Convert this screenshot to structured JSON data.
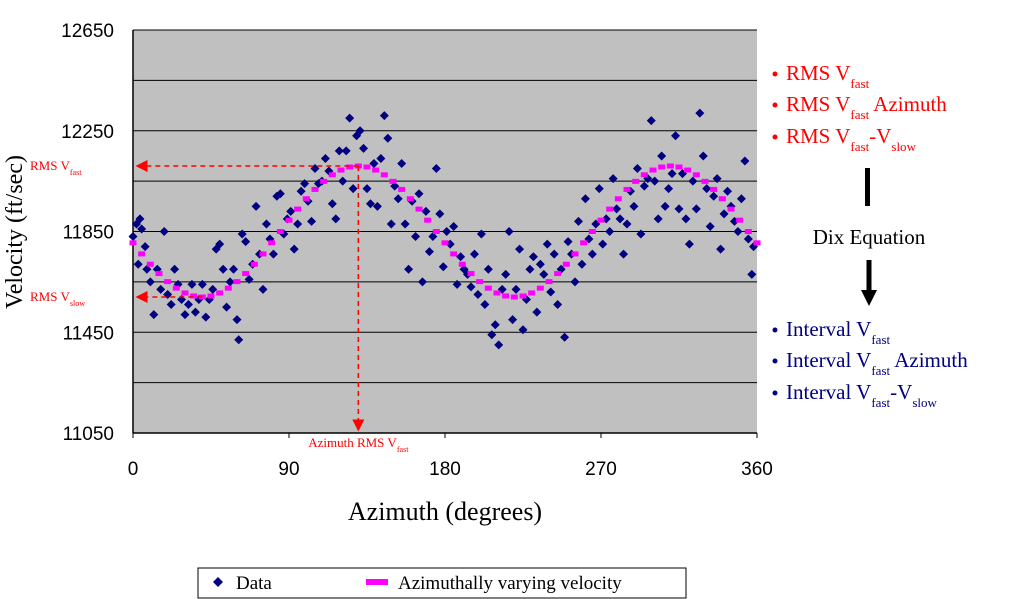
{
  "chart_data": {
    "type": "scatter",
    "xlabel": "Azimuth (degrees)",
    "ylabel": "Velocity (ft/sec)",
    "xlim": [
      0,
      360
    ],
    "ylim": [
      11050,
      12650
    ],
    "xticks": [
      0,
      90,
      180,
      270,
      360
    ],
    "yticks": [
      11050,
      11450,
      11850,
      12250,
      12650
    ],
    "minor_yticks": [
      11250,
      11650,
      12050,
      12450
    ],
    "grid": true,
    "background": "#c0c0c0",
    "legend": "bottom",
    "series": [
      {
        "name": "Data",
        "color": "#000080",
        "marker": "diamond",
        "x": [
          0,
          2,
          3,
          4,
          5,
          7,
          8,
          10,
          12,
          14,
          16,
          18,
          20,
          22,
          24,
          26,
          28,
          30,
          32,
          34,
          36,
          38,
          40,
          42,
          44,
          46,
          48,
          50,
          52,
          54,
          56,
          58,
          60,
          61,
          63,
          65,
          67,
          69,
          71,
          73,
          75,
          77,
          79,
          81,
          83,
          85,
          87,
          89,
          91,
          93,
          95,
          97,
          99,
          101,
          103,
          105,
          107,
          109,
          111,
          113,
          115,
          117,
          119,
          121,
          123,
          125,
          127,
          129,
          131,
          133,
          135,
          137,
          139,
          141,
          143,
          145,
          147,
          149,
          151,
          153,
          155,
          157,
          159,
          161,
          163,
          165,
          167,
          169,
          171,
          173,
          175,
          177,
          179,
          181,
          183,
          185,
          187,
          189,
          191,
          193,
          195,
          197,
          199,
          201,
          203,
          205,
          207,
          209,
          211,
          213,
          215,
          217,
          219,
          221,
          223,
          225,
          227,
          229,
          231,
          233,
          235,
          237,
          239,
          241,
          243,
          245,
          247,
          249,
          251,
          253,
          255,
          257,
          259,
          261,
          263,
          265,
          267,
          269,
          271,
          273,
          275,
          277,
          279,
          281,
          283,
          285,
          287,
          289,
          291,
          293,
          295,
          297,
          299,
          301,
          303,
          305,
          307,
          309,
          311,
          313,
          315,
          317,
          319,
          321,
          323,
          325,
          327,
          329,
          331,
          333,
          335,
          337,
          339,
          341,
          343,
          345,
          347,
          349,
          351,
          353,
          355,
          357,
          358
        ],
        "values": [
          11830,
          11880,
          11720,
          11900,
          11860,
          11790,
          11700,
          11650,
          11520,
          11700,
          11620,
          11850,
          11600,
          11560,
          11700,
          11640,
          11580,
          11520,
          11560,
          11640,
          11530,
          11580,
          11640,
          11510,
          11580,
          11620,
          11780,
          11800,
          11700,
          11550,
          11650,
          11700,
          11500,
          11420,
          11840,
          11810,
          11660,
          11720,
          11950,
          11760,
          11620,
          11880,
          11820,
          11760,
          11990,
          12000,
          11840,
          11900,
          11930,
          11780,
          11880,
          12010,
          12040,
          11970,
          11890,
          12100,
          12040,
          12050,
          12140,
          12090,
          11960,
          11900,
          12170,
          12050,
          12170,
          12300,
          12020,
          12230,
          12250,
          12180,
          12020,
          11960,
          12120,
          11950,
          12140,
          12310,
          12220,
          11880,
          12030,
          11980,
          12120,
          11880,
          11700,
          11970,
          11830,
          12000,
          11650,
          11930,
          11770,
          11830,
          12100,
          11920,
          11710,
          11850,
          11800,
          11870,
          11640,
          11750,
          11700,
          11680,
          11630,
          11760,
          11600,
          11840,
          11560,
          11700,
          11440,
          11480,
          11400,
          11620,
          11680,
          11850,
          11500,
          11620,
          11780,
          11460,
          11580,
          11700,
          11750,
          11530,
          11720,
          11680,
          11800,
          11610,
          11760,
          11560,
          11700,
          11430,
          11810,
          11760,
          11650,
          11890,
          11720,
          11980,
          11820,
          11760,
          11880,
          12020,
          11800,
          11900,
          11850,
          12060,
          11940,
          11900,
          11760,
          11880,
          12010,
          11950,
          12100,
          11840,
          12030,
          12060,
          12290,
          12050,
          11900,
          12150,
          11950,
          12020,
          12080,
          12230,
          11940,
          12080,
          11900,
          11800,
          12050,
          11940,
          12320,
          12150,
          12020,
          11870,
          11990,
          12060,
          11780,
          11920,
          12010,
          11950,
          11890,
          11850,
          11980,
          12130,
          11820,
          11680,
          11790
        ]
      },
      {
        "name": "Azimuthally varying velocity",
        "color": "#ff00ff",
        "marker": "square",
        "x": [
          0,
          5,
          10,
          15,
          20,
          25,
          30,
          35,
          40,
          45,
          50,
          55,
          60,
          65,
          70,
          75,
          80,
          85,
          90,
          95,
          100,
          105,
          110,
          115,
          120,
          125,
          130,
          135,
          140,
          145,
          150,
          155,
          160,
          165,
          170,
          175,
          180,
          185,
          190,
          195,
          200,
          205,
          210,
          215,
          220,
          225,
          230,
          235,
          240,
          245,
          250,
          255,
          260,
          265,
          270,
          275,
          280,
          285,
          290,
          295,
          300,
          305,
          310,
          315,
          320,
          325,
          330,
          335,
          340,
          345,
          350,
          355,
          360
        ],
        "values": [
          11805,
          11761,
          11720,
          11683,
          11651,
          11625,
          11606,
          11594,
          11590,
          11594,
          11606,
          11625,
          11651,
          11683,
          11720,
          11761,
          11805,
          11850,
          11895,
          11939,
          11980,
          12017,
          12049,
          12075,
          12094,
          12106,
          12110,
          12106,
          12094,
          12075,
          12049,
          12017,
          11980,
          11939,
          11895,
          11850,
          11805,
          11761,
          11720,
          11683,
          11651,
          11625,
          11606,
          11594,
          11590,
          11594,
          11606,
          11625,
          11651,
          11683,
          11720,
          11761,
          11805,
          11850,
          11895,
          11939,
          11980,
          12017,
          12049,
          12075,
          12094,
          12106,
          12110,
          12106,
          12094,
          12075,
          12049,
          12017,
          11980,
          11939,
          11895,
          11850,
          11805
        ]
      }
    ],
    "annotations": [
      {
        "parts": [
          "RMS V",
          "fast"
        ],
        "axis": "y",
        "value": 12110,
        "to": 130,
        "color": "#ff0000"
      },
      {
        "parts": [
          "RMS V",
          "slow"
        ],
        "axis": "y",
        "value": 11590,
        "to": 40,
        "color": "#ff0000"
      },
      {
        "parts": [
          "Azimuth RMS V",
          "fast"
        ],
        "axis": "x",
        "value": 130,
        "to": 12110,
        "color": "#ff0000"
      }
    ],
    "workflow": {
      "inputs": {
        "color": "#ff0000",
        "items": [
          [
            "RMS V",
            "fast"
          ],
          [
            "RMS V",
            "fast",
            " Azimuth"
          ],
          [
            "RMS V",
            "fast",
            "-V",
            "slow"
          ]
        ]
      },
      "step": "Dix Equation",
      "outputs": {
        "color": "#000080",
        "items": [
          [
            "Interval V",
            "fast"
          ],
          [
            "Interval V",
            "fast",
            " Azimuth"
          ],
          [
            "Interval V",
            "fast",
            "-V",
            "slow"
          ]
        ]
      }
    }
  }
}
